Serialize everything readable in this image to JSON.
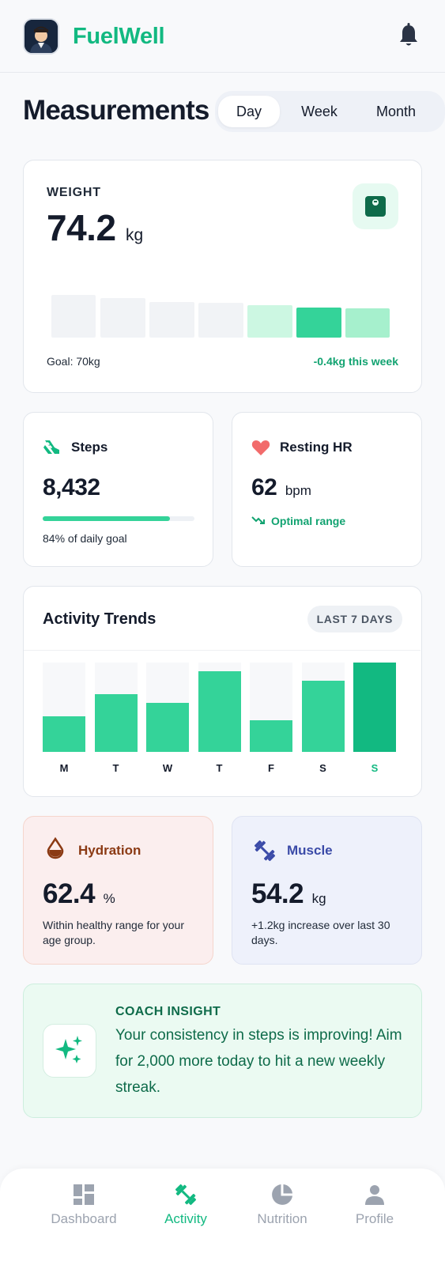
{
  "app": {
    "brand": "FuelWell"
  },
  "page": {
    "title": "Measurements"
  },
  "range_tabs": [
    {
      "label": "Day",
      "active": true
    },
    {
      "label": "Week",
      "active": false
    },
    {
      "label": "Month",
      "active": false
    }
  ],
  "weight": {
    "label": "WEIGHT",
    "value": "74.2",
    "unit": "kg",
    "goal": "Goal: 70kg",
    "change": "-0.4kg this week",
    "icon": "scale-icon"
  },
  "steps": {
    "label": "Steps",
    "value": "8,432",
    "progress_fraction": 0.84,
    "caption": "84% of daily goal",
    "icon": "shoe-icon"
  },
  "resting_hr": {
    "label": "Resting HR",
    "value": "62",
    "unit": "bpm",
    "status": "Optimal range",
    "icon": "heart-icon"
  },
  "activity_trends": {
    "title": "Activity Trends",
    "range": "LAST 7 DAYS",
    "days": [
      "M",
      "T",
      "W",
      "T",
      "F",
      "S",
      "S"
    ],
    "levels": [
      0.4,
      0.65,
      0.55,
      0.9,
      0.35,
      0.8,
      1.0
    ],
    "highlight_index": 6
  },
  "hydration": {
    "label": "Hydration",
    "value": "62.4",
    "unit": "%",
    "caption": "Within healthy range for your age group.",
    "icon": "water-drop-icon"
  },
  "muscle": {
    "label": "Muscle",
    "value": "54.2",
    "unit": "kg",
    "caption": "+1.2kg increase over last 30 days.",
    "icon": "dumbbell-icon"
  },
  "coach": {
    "label": "COACH INSIGHT",
    "text": "Your consistency in steps is improving! Aim for 2,000 more today to hit a new weekly streak.",
    "icon": "sparkles-icon"
  },
  "nav": [
    {
      "label": "Dashboard",
      "icon": "dashboard-icon",
      "active": false
    },
    {
      "label": "Activity",
      "icon": "activity-icon",
      "active": true
    },
    {
      "label": "Nutrition",
      "icon": "pie-chart-icon",
      "active": false
    },
    {
      "label": "Profile",
      "icon": "person-icon",
      "active": false
    }
  ],
  "colors": {
    "accent": "#12b981",
    "accent_light": "#34d399",
    "hydration_bg": "#fbeeee",
    "hydration_text": "#8b3a14",
    "muscle_bg": "#eef1fb",
    "muscle_text": "#3b4ba8",
    "coach_bg": "#ebfaf2",
    "coach_text": "#0e6b4a"
  }
}
